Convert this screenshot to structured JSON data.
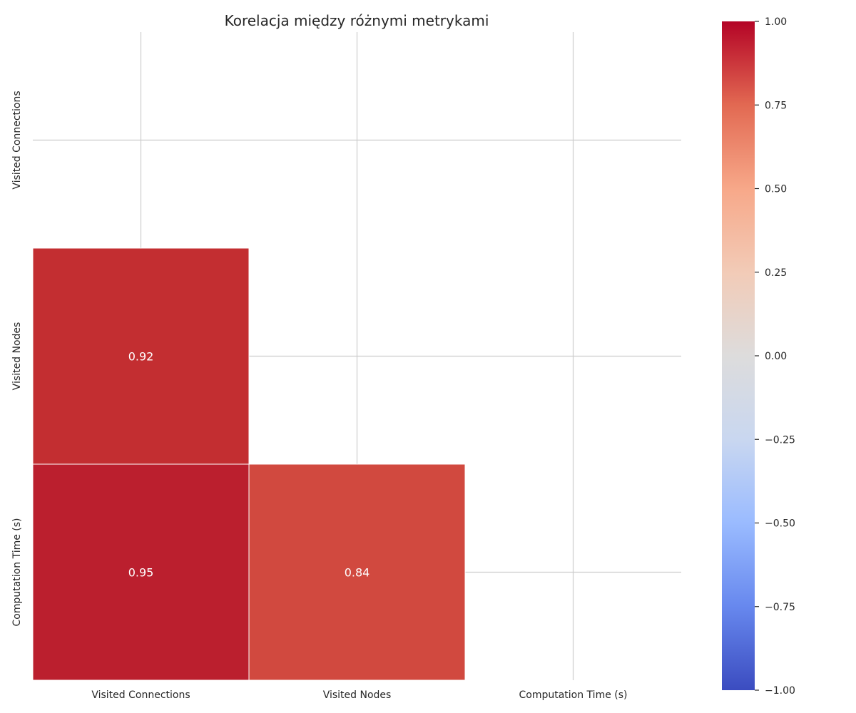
{
  "chart_data": {
    "type": "heatmap",
    "title": "Korelacja między różnymi metrykami",
    "x_categories": [
      "Visited Connections",
      "Visited Nodes",
      "Computation Time (s)"
    ],
    "y_categories": [
      "Visited Connections",
      "Visited Nodes",
      "Computation Time (s)"
    ],
    "cells": [
      {
        "row": 1,
        "col": 0,
        "value": 0.92,
        "label": "0.92"
      },
      {
        "row": 2,
        "col": 0,
        "value": 0.95,
        "label": "0.95"
      },
      {
        "row": 2,
        "col": 1,
        "value": 0.84,
        "label": "0.84"
      }
    ],
    "mask": "upper-triangle-including-diagonal",
    "colormap": "coolwarm",
    "color_stops": [
      "#3b4cc0",
      "#6788ee",
      "#9abbff",
      "#c9d7f0",
      "#dddcdc",
      "#f2cbb7",
      "#f7a889",
      "#e26952",
      "#b40426"
    ],
    "cell_colors": {
      "0.92": "#c32e31",
      "0.95": "#bb1f2e",
      "0.84": "#d1493f"
    },
    "vmin": -1.0,
    "vmax": 1.0,
    "colorbar_ticks": [
      "1.00",
      "0.75",
      "0.50",
      "0.25",
      "0.00",
      "−0.25",
      "−0.50",
      "−0.75",
      "−1.00"
    ],
    "colorbar_tick_values": [
      1.0,
      0.75,
      0.5,
      0.25,
      0.0,
      -0.25,
      -0.5,
      -0.75,
      -1.0
    ],
    "grid": true
  }
}
